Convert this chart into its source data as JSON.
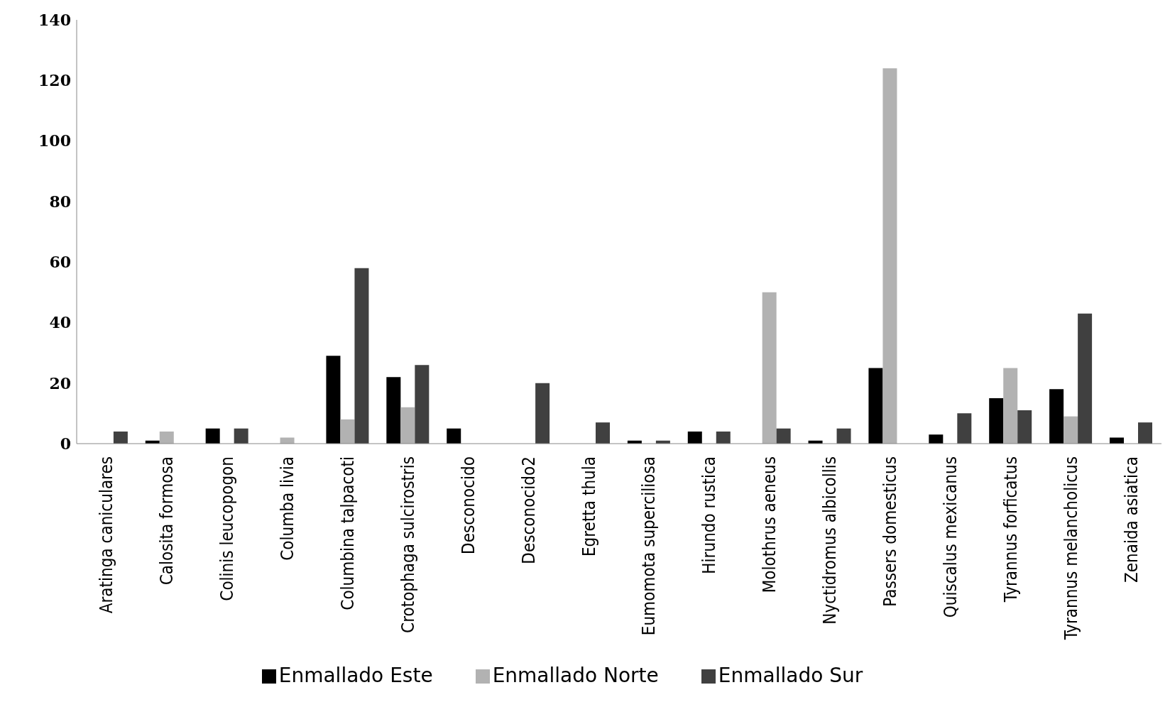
{
  "chart_data": {
    "type": "bar",
    "categories": [
      "Aratinga caniculares",
      "Calosita formosa",
      "Colinis leucopogon",
      "Columba livia",
      "Columbina talpacoti",
      "Crotophaga sulcirostris",
      "Desconocido",
      "Desconocido2",
      "Egretta thula",
      "Eumomota superciliosa",
      "Hirundo rustica",
      "Molothrus aeneus",
      "Nyctidromus albicollis",
      "Passers domesticus",
      "Quiscalus mexicanus",
      "Tyrannus forficatus",
      "Tyrannus melancholicus",
      "Zenaida asiatica"
    ],
    "series": [
      {
        "name": "Enmallado Este",
        "color": "#000000",
        "values": [
          0,
          1,
          5,
          0,
          29,
          22,
          5,
          0,
          0,
          1,
          4,
          0,
          1,
          25,
          3,
          15,
          18,
          2
        ]
      },
      {
        "name": "Enmallado Norte",
        "color": "#b2b2b2",
        "values": [
          0,
          4,
          0,
          2,
          8,
          12,
          0,
          0,
          0,
          0,
          0,
          50,
          0,
          124,
          0,
          25,
          9,
          0
        ]
      },
      {
        "name": "Enmallado Sur",
        "color": "#404040",
        "values": [
          4,
          0,
          5,
          0,
          58,
          26,
          0,
          20,
          7,
          1,
          4,
          5,
          5,
          0,
          10,
          11,
          43,
          7
        ]
      }
    ],
    "ylim": [
      0,
      140
    ],
    "yticks": [
      0,
      20,
      40,
      60,
      80,
      100,
      120,
      140
    ],
    "grid": false,
    "legend": "bottom"
  }
}
